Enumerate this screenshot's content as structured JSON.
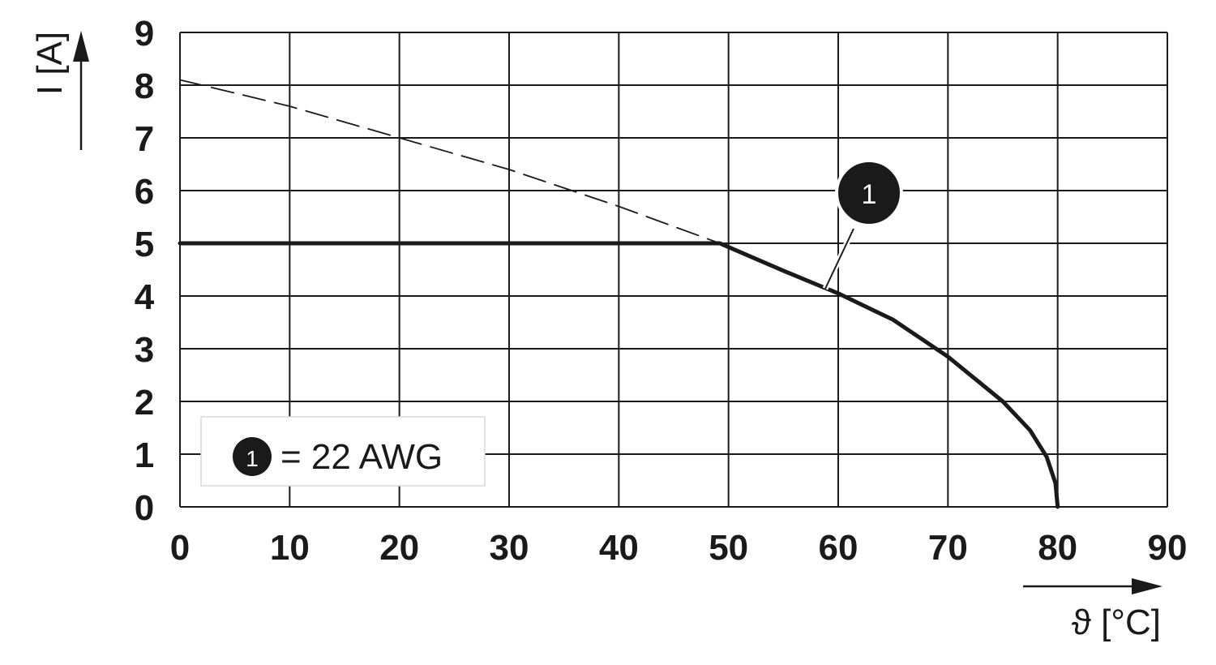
{
  "chart_data": {
    "type": "line",
    "xlabel": "ϑ [°C]",
    "ylabel": "I [A]",
    "xlim": [
      0,
      90
    ],
    "ylim": [
      0,
      9
    ],
    "x_ticks": [
      "0",
      "10",
      "20",
      "30",
      "40",
      "50",
      "60",
      "70",
      "80",
      "90"
    ],
    "y_ticks": [
      "0",
      "1",
      "2",
      "3",
      "4",
      "5",
      "6",
      "7",
      "8",
      "9"
    ],
    "grid": true,
    "series": [
      {
        "name": "1",
        "style": "solid",
        "x": [
          0,
          49.2,
          55,
          60,
          65,
          70,
          75,
          77.5,
          79,
          79.8,
          80
        ],
        "y": [
          5,
          5,
          4.48,
          4.05,
          3.55,
          2.85,
          2.0,
          1.45,
          0.95,
          0.45,
          0
        ]
      },
      {
        "style": "dashed",
        "x": [
          0,
          10,
          20,
          30,
          40,
          49.2
        ],
        "y": [
          8.1,
          7.6,
          7.0,
          6.4,
          5.7,
          5.0
        ]
      }
    ],
    "annotations": [
      {
        "label": "1",
        "x": 58.5,
        "y": 4.2
      }
    ],
    "legend": {
      "marker": "1",
      "text": "= 22 AWG",
      "position": "bottom-left"
    }
  }
}
